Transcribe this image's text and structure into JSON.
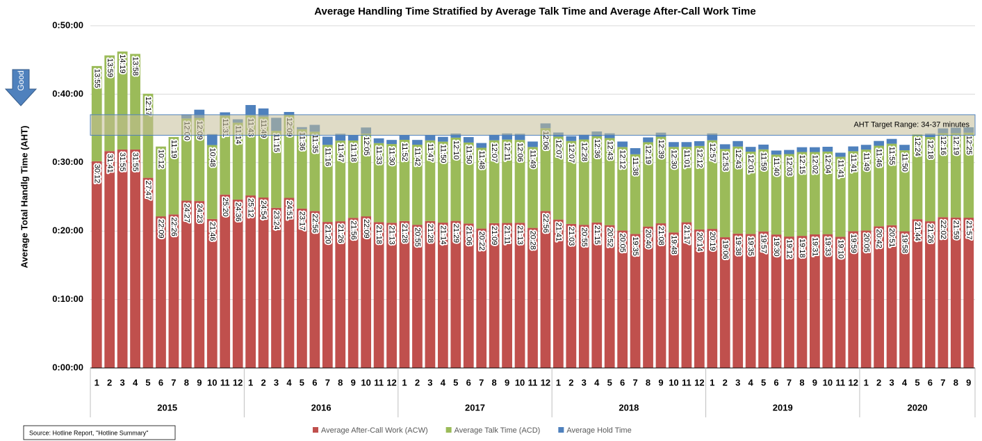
{
  "chart_data": {
    "type": "stacked_bar",
    "title": "Average Handling Time Stratified by Average Talk Time and Average After-Call Work Time",
    "y_label": "Average Total Handlg Time (AHT)",
    "annotation": "Good",
    "source": "Source: Hotline Report, \"Hotline Summary\"",
    "target_band": {
      "label": "AHT Target Range:  34-37 minutes",
      "low": 2040,
      "high": 2220
    },
    "ylim": [
      0,
      3000
    ],
    "yticks": [
      {
        "value": 0,
        "label": "0:00:00"
      },
      {
        "value": 600,
        "label": "0:10:00"
      },
      {
        "value": 1200,
        "label": "0:20:00"
      },
      {
        "value": 1800,
        "label": "0:30:00"
      },
      {
        "value": 2400,
        "label": "0:40:00"
      },
      {
        "value": 3000,
        "label": "0:50:00"
      }
    ],
    "grid": true,
    "groups": [
      "2015",
      "2016",
      "2017",
      "2018",
      "2019",
      "2020"
    ],
    "categories": [
      "1",
      "2",
      "3",
      "4",
      "5",
      "6",
      "7",
      "8",
      "9",
      "10",
      "11",
      "12",
      "1",
      "2",
      "3",
      "4",
      "5",
      "6",
      "7",
      "8",
      "9",
      "10",
      "11",
      "12",
      "1",
      "2",
      "3",
      "4",
      "5",
      "6",
      "7",
      "8",
      "9",
      "10",
      "11",
      "12",
      "1",
      "2",
      "3",
      "4",
      "5",
      "6",
      "7",
      "8",
      "9",
      "10",
      "11",
      "12",
      "1",
      "2",
      "3",
      "4",
      "5",
      "6",
      "7",
      "8",
      "9",
      "10",
      "11",
      "12",
      "1",
      "2",
      "3",
      "4",
      "5",
      "6",
      "7",
      "8",
      "9"
    ],
    "series": [
      {
        "name": "Average After-Call Work (ACW)",
        "color": "#c0504d",
        "values": [
          1812,
          1901,
          1915,
          1915,
          1667,
          1329,
          1346,
          1467,
          1463,
          1306,
          1520,
          1476,
          1512,
          1494,
          1404,
          1491,
          1397,
          1376,
          1280,
          1286,
          1316,
          1329,
          1278,
          1273,
          1288,
          1255,
          1288,
          1274,
          1289,
          1266,
          1222,
          1269,
          1271,
          1273,
          1228,
          1376,
          1301,
          1263,
          1255,
          1275,
          1252,
          1205,
          1175,
          1240,
          1268,
          1188,
          1277,
          1214,
          1219,
          1146,
          1178,
          1175,
          1197,
          1170,
          1152,
          1158,
          1171,
          1173,
          1150,
          1199,
          1205,
          1242,
          1251,
          1198,
          1304,
          1286,
          1322,
          1319,
          1317
        ],
        "value_labels": [
          "30:12",
          "31:41",
          "31:55",
          "31:55",
          "27:47",
          "22:09",
          "22:26",
          "24:27",
          "24:23",
          "21:46",
          "25:20",
          "24:36",
          "25:12",
          "24:54",
          "23:24",
          "24:51",
          "23:17",
          "22:56",
          "21:20",
          "21:26",
          "21:56",
          "22:09",
          "21:18",
          "21:13",
          "21:28",
          "20:55",
          "21:28",
          "21:14",
          "21:29",
          "21:06",
          "20:22",
          "21:09",
          "21:11",
          "21:13",
          "20:28",
          "22:56",
          "21:41",
          "21:03",
          "20:55",
          "21:15",
          "20:52",
          "20:05",
          "19:35",
          "20:40",
          "21:08",
          "19:48",
          "21:17",
          "20:14",
          "20:19",
          "19:06",
          "19:38",
          "19:35",
          "19:57",
          "19:30",
          "19:12",
          "19:18",
          "19:31",
          "19:33",
          "19:10",
          "19:59",
          "20:05",
          "20:42",
          "20:51",
          "19:58",
          "21:44",
          "21:26",
          "22:02",
          "21:59",
          "21:57"
        ]
      },
      {
        "name": "Average Talk Time (ACD)",
        "color": "#9bbb59",
        "values": [
          835,
          839,
          859,
          838,
          737,
          612,
          679,
          720,
          729,
          648,
          691,
          674,
          703,
          709,
          675,
          729,
          696,
          695,
          676,
          707,
          678,
          725,
          693,
          690,
          712,
          702,
          707,
          710,
          730,
          710,
          708,
          727,
          731,
          726,
          709,
          726,
          727,
          727,
          748,
          756,
          763,
          732,
          698,
          739,
          759,
          750,
          661,
          732,
          777,
          773,
          763,
          721,
          719,
          700,
          723,
          735,
          722,
          724,
          701,
          701,
          709,
          706,
          715,
          710,
          744,
          738,
          736,
          739,
          745
        ],
        "value_labels": [
          "13:55",
          "13:59",
          "14:19",
          "13:58",
          "12:17",
          "10:12",
          "11:19",
          "12:00",
          "12:09",
          "10:48",
          "11:31",
          "11:14",
          "11:43",
          "11:49",
          "11:15",
          "12:09",
          "11:36",
          "11:35",
          "11:16",
          "11:47",
          "11:18",
          "12:05",
          "11:33",
          "11:30",
          "11:52",
          "11:42",
          "11:47",
          "11:50",
          "12:10",
          "11:50",
          "11:48",
          "12:07",
          "12:11",
          "12:06",
          "11:49",
          "12:06",
          "12:07",
          "12:07",
          "12:28",
          "12:36",
          "12:43",
          "12:12",
          "11:38",
          "12:19",
          "12:39",
          "12:30",
          "11:01",
          "12:12",
          "12:57",
          "12:53",
          "12:43",
          "12:01",
          "11:59",
          "11:40",
          "12:03",
          "12:15",
          "12:02",
          "12:04",
          "11:41",
          "11:41",
          "11:49",
          "11:46",
          "11:55",
          "11:50",
          "12:24",
          "12:18",
          "12:16",
          "12:19",
          "12:25"
        ]
      },
      {
        "name": "Average Hold Time",
        "color": "#4f81bd",
        "values": [
          0,
          0,
          0,
          0,
          0,
          0,
          0,
          36,
          72,
          96,
          30,
          30,
          90,
          72,
          114,
          24,
          18,
          60,
          72,
          60,
          48,
          54,
          42,
          36,
          42,
          42,
          48,
          42,
          36,
          48,
          42,
          48,
          54,
          54,
          48,
          42,
          36,
          42,
          42,
          42,
          42,
          48,
          54,
          42,
          36,
          42,
          42,
          42,
          60,
          42,
          48,
          42,
          42,
          36,
          36,
          42,
          42,
          42,
          36,
          42,
          42,
          42,
          42,
          48,
          0,
          30,
          42,
          48,
          48
        ]
      }
    ]
  }
}
